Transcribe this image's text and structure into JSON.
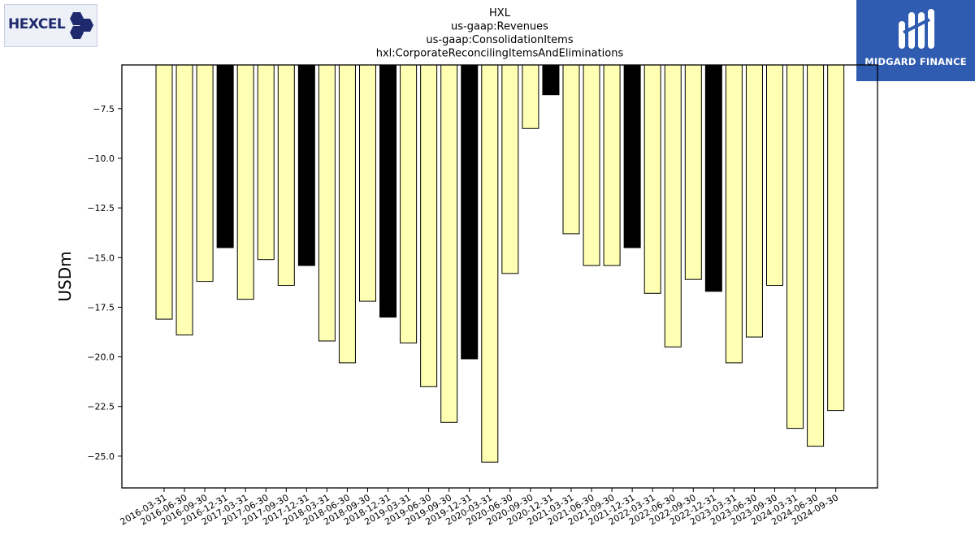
{
  "logos": {
    "left_text": "HEXCEL",
    "right_text": "MIDGARD FINANCE"
  },
  "chart_data": {
    "type": "bar",
    "title_lines": [
      "HXL",
      "us-gaap:Revenues",
      "us-gaap:ConsolidationItems",
      "hxl:CorporateReconcilingItemsAndEliminations"
    ],
    "ylabel": "USDm",
    "xlabel": "",
    "ylim": [
      -26.6,
      -5.3
    ],
    "yticks": [
      -7.5,
      -10.0,
      -12.5,
      -15.0,
      -17.5,
      -20.0,
      -22.5,
      -25.0
    ],
    "categories": [
      "2016-03-31",
      "2016-06-30",
      "2016-09-30",
      "2016-12-31",
      "2017-03-31",
      "2017-06-30",
      "2017-09-30",
      "2017-12-31",
      "2018-03-31",
      "2018-06-30",
      "2018-09-30",
      "2018-12-31",
      "2019-03-31",
      "2019-06-30",
      "2019-09-30",
      "2019-12-31",
      "2020-03-31",
      "2020-06-30",
      "2020-09-30",
      "2020-12-31",
      "2021-03-31",
      "2021-06-30",
      "2021-09-30",
      "2021-12-31",
      "2022-03-31",
      "2022-06-30",
      "2022-09-30",
      "2022-12-31",
      "2023-03-31",
      "2023-06-30",
      "2023-09-30",
      "2024-03-31",
      "2024-06-30",
      "2024-09-30"
    ],
    "values": [
      -18.1,
      -18.9,
      -16.2,
      -14.5,
      -17.1,
      -15.1,
      -16.4,
      -15.4,
      -19.2,
      -20.3,
      -17.2,
      -18.0,
      -19.3,
      -21.5,
      -23.3,
      -20.1,
      -25.3,
      -15.8,
      -8.5,
      -6.8,
      -13.8,
      -15.4,
      -15.4,
      -14.5,
      -16.8,
      -19.5,
      -16.1,
      -16.7,
      -20.3,
      -19.0,
      -16.4,
      -23.6,
      -24.5,
      -22.7
    ],
    "bar_colors": [
      "#ffffb3",
      "#ffffb3",
      "#ffffb3",
      "#000000",
      "#ffffb3",
      "#ffffb3",
      "#ffffb3",
      "#000000",
      "#ffffb3",
      "#ffffb3",
      "#ffffb3",
      "#000000",
      "#ffffb3",
      "#ffffb3",
      "#ffffb3",
      "#000000",
      "#ffffb3",
      "#ffffb3",
      "#ffffb3",
      "#000000",
      "#ffffb3",
      "#ffffb3",
      "#ffffb3",
      "#000000",
      "#ffffb3",
      "#ffffb3",
      "#ffffb3",
      "#000000",
      "#ffffb3",
      "#ffffb3",
      "#ffffb3",
      "#ffffb3",
      "#ffffb3",
      "#ffffb3"
    ],
    "grid": false,
    "legend": "none"
  }
}
